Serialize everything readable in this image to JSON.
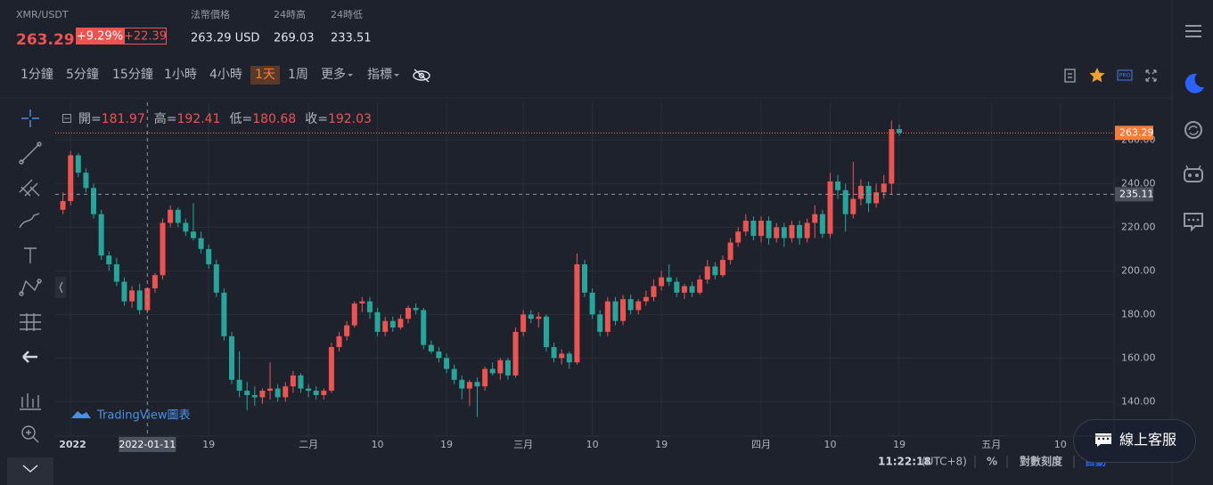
{
  "header": {
    "pair": "XMR/USDT",
    "last_price": "263.29",
    "change_pct": "+9.29%",
    "change_abs": "+22.39",
    "fiat_label": "法幣價格",
    "fiat_value": "263.29 USD",
    "high_label": "24時高",
    "high_value": "269.03",
    "low_label": "24時低",
    "low_value": "233.51"
  },
  "timeframes": [
    "1分鐘",
    "5分鐘",
    "15分鐘",
    "1小時",
    "4小時",
    "1天",
    "1周"
  ],
  "active_timeframe": 5,
  "menus": [
    "更多",
    "指標"
  ],
  "legend": {
    "open_label": "開=",
    "open": "181.97",
    "high_label": "高=",
    "high": "192.41",
    "low_label": "低=",
    "low": "180.68",
    "close_label": "收=",
    "close": "192.03"
  },
  "watermark": "TradingView圖表",
  "chart": {
    "type": "candlestick",
    "up_color": "#ef5350",
    "down_color": "#26a69a",
    "xlim": [
      "2021-12-30",
      "2022-05-17"
    ],
    "ylim": [
      124.2,
      277.3
    ],
    "yticks": [
      {
        "value": 140,
        "label": "140.00"
      },
      {
        "value": 160,
        "label": "160.00"
      },
      {
        "value": 180,
        "label": "180.00"
      },
      {
        "value": 200,
        "label": "200.00"
      },
      {
        "value": 220,
        "label": "220.00"
      },
      {
        "value": 240,
        "label": "240.00"
      },
      {
        "value": 260,
        "label": "260.00"
      }
    ],
    "xticks": [
      {
        "value": "2022-01-01",
        "label": "2022"
      },
      {
        "value": "2022-01-19",
        "label": "19"
      },
      {
        "value": "2022-02-01",
        "label": "二月"
      },
      {
        "value": "2022-02-10",
        "label": "10"
      },
      {
        "value": "2022-02-19",
        "label": "19"
      },
      {
        "value": "2022-03-01",
        "label": "三月"
      },
      {
        "value": "2022-03-10",
        "label": "10"
      },
      {
        "value": "2022-03-19",
        "label": "19"
      },
      {
        "value": "2022-04-01",
        "label": "四月"
      },
      {
        "value": "2022-04-10",
        "label": "10"
      },
      {
        "value": "2022-04-19",
        "label": "19"
      },
      {
        "value": "2022-05-01",
        "label": "五月"
      },
      {
        "value": "2022-05-10",
        "label": "10"
      }
    ],
    "crosshair_date": "2022-01-11",
    "crosshair_price": {
      "value": 235.11,
      "label": "235.11"
    },
    "last_price_line": {
      "value": 263.29,
      "label": "263.29"
    },
    "candles": [
      [
        "2021-12-31",
        228,
        236,
        226,
        232
      ],
      [
        "2022-01-01",
        232,
        255,
        230,
        253
      ],
      [
        "2022-01-02",
        253,
        254,
        243,
        245
      ],
      [
        "2022-01-03",
        245,
        247,
        236,
        238
      ],
      [
        "2022-01-04",
        238,
        240,
        224,
        226
      ],
      [
        "2022-01-05",
        226,
        228,
        205,
        207
      ],
      [
        "2022-01-06",
        207,
        209,
        200,
        203
      ],
      [
        "2022-01-07",
        203,
        206,
        193,
        195
      ],
      [
        "2022-01-08",
        195,
        197,
        184,
        186
      ],
      [
        "2022-01-09",
        186,
        193,
        183,
        191
      ],
      [
        "2022-01-10",
        191,
        194,
        180,
        182
      ],
      [
        "2022-01-11",
        181.97,
        192.41,
        180.68,
        192.03
      ],
      [
        "2022-01-12",
        192,
        199,
        190,
        198
      ],
      [
        "2022-01-13",
        198,
        224,
        196,
        222
      ],
      [
        "2022-01-14",
        222,
        230,
        220,
        228
      ],
      [
        "2022-01-15",
        228,
        229,
        220,
        222
      ],
      [
        "2022-01-16",
        222,
        224,
        216,
        218
      ],
      [
        "2022-01-17",
        218,
        231,
        214,
        215
      ],
      [
        "2022-01-18",
        215,
        218,
        208,
        210
      ],
      [
        "2022-01-19",
        210,
        212,
        201,
        203
      ],
      [
        "2022-01-20",
        203,
        205,
        188,
        190
      ],
      [
        "2022-01-21",
        190,
        192,
        168,
        170
      ],
      [
        "2022-01-22",
        170,
        172,
        148,
        150
      ],
      [
        "2022-01-23",
        150,
        163,
        142,
        145
      ],
      [
        "2022-01-24",
        145,
        149,
        136,
        143
      ],
      [
        "2022-01-25",
        143,
        147,
        138,
        142
      ],
      [
        "2022-01-26",
        142,
        146,
        139,
        145
      ],
      [
        "2022-01-27",
        145,
        158,
        141,
        146
      ],
      [
        "2022-01-28",
        146,
        148,
        140,
        142
      ],
      [
        "2022-01-29",
        142,
        149,
        140,
        147
      ],
      [
        "2022-01-30",
        147,
        154,
        144,
        152
      ],
      [
        "2022-01-31",
        152,
        153,
        144,
        146
      ],
      [
        "2022-02-01",
        146,
        148,
        142,
        145
      ],
      [
        "2022-02-02",
        145,
        147,
        141,
        143
      ],
      [
        "2022-02-03",
        143,
        146,
        141,
        145
      ],
      [
        "2022-02-04",
        145,
        167,
        144,
        165
      ],
      [
        "2022-02-05",
        165,
        172,
        163,
        170
      ],
      [
        "2022-02-06",
        170,
        177,
        168,
        175
      ],
      [
        "2022-02-07",
        175,
        186,
        174,
        185
      ],
      [
        "2022-02-08",
        185,
        188,
        181,
        186
      ],
      [
        "2022-02-09",
        186,
        188,
        178,
        181
      ],
      [
        "2022-02-10",
        181,
        183,
        170,
        172
      ],
      [
        "2022-02-11",
        172,
        179,
        170,
        177
      ],
      [
        "2022-02-12",
        177,
        179,
        172,
        174
      ],
      [
        "2022-02-13",
        174,
        180,
        173,
        178
      ],
      [
        "2022-02-14",
        178,
        184,
        176,
        183
      ],
      [
        "2022-02-15",
        183,
        185,
        180,
        182
      ],
      [
        "2022-02-16",
        182,
        183,
        164,
        166
      ],
      [
        "2022-02-17",
        166,
        168,
        162,
        163
      ],
      [
        "2022-02-18",
        163,
        165,
        158,
        160
      ],
      [
        "2022-02-19",
        160,
        162,
        153,
        155
      ],
      [
        "2022-02-20",
        155,
        157,
        148,
        150
      ],
      [
        "2022-02-21",
        150,
        152,
        141,
        146
      ],
      [
        "2022-02-22",
        146,
        150,
        138,
        149
      ],
      [
        "2022-02-23",
        149,
        151,
        133,
        147
      ],
      [
        "2022-02-24",
        147,
        156,
        145,
        155
      ],
      [
        "2022-02-25",
        155,
        158,
        152,
        153
      ],
      [
        "2022-02-26",
        153,
        160,
        150,
        159
      ],
      [
        "2022-02-27",
        159,
        160,
        150,
        152
      ],
      [
        "2022-02-28",
        152,
        174,
        151,
        172
      ],
      [
        "2022-03-01",
        172,
        182,
        170,
        180
      ],
      [
        "2022-03-02",
        180,
        182,
        176,
        178
      ],
      [
        "2022-03-03",
        178,
        181,
        174,
        179
      ],
      [
        "2022-03-04",
        179,
        180,
        163,
        165
      ],
      [
        "2022-03-05",
        165,
        167,
        158,
        160
      ],
      [
        "2022-03-06",
        160,
        164,
        157,
        162
      ],
      [
        "2022-03-07",
        162,
        163,
        155,
        158
      ],
      [
        "2022-03-08",
        158,
        208,
        157,
        203
      ],
      [
        "2022-03-09",
        203,
        205,
        188,
        190
      ],
      [
        "2022-03-10",
        190,
        192,
        178,
        180
      ],
      [
        "2022-03-11",
        180,
        182,
        170,
        172
      ],
      [
        "2022-03-12",
        172,
        188,
        170,
        186
      ],
      [
        "2022-03-13",
        186,
        188,
        175,
        177
      ],
      [
        "2022-03-14",
        177,
        189,
        175,
        187
      ],
      [
        "2022-03-15",
        187,
        189,
        180,
        182
      ],
      [
        "2022-03-16",
        182,
        187,
        180,
        186
      ],
      [
        "2022-03-17",
        186,
        191,
        184,
        188
      ],
      [
        "2022-03-18",
        188,
        196,
        186,
        193
      ],
      [
        "2022-03-19",
        193,
        200,
        191,
        197
      ],
      [
        "2022-03-20",
        197,
        203,
        193,
        195
      ],
      [
        "2022-03-21",
        195,
        197,
        188,
        190
      ],
      [
        "2022-03-22",
        190,
        194,
        187,
        193
      ],
      [
        "2022-03-23",
        193,
        195,
        188,
        190
      ],
      [
        "2022-03-24",
        190,
        198,
        189,
        196
      ],
      [
        "2022-03-25",
        196,
        205,
        194,
        202
      ],
      [
        "2022-03-26",
        202,
        204,
        196,
        198
      ],
      [
        "2022-03-27",
        198,
        207,
        197,
        205
      ],
      [
        "2022-03-28",
        205,
        215,
        203,
        213
      ],
      [
        "2022-03-29",
        213,
        220,
        211,
        218
      ],
      [
        "2022-03-30",
        218,
        226,
        216,
        223
      ],
      [
        "2022-03-31",
        223,
        225,
        214,
        216
      ],
      [
        "2022-04-01",
        216,
        225,
        213,
        223
      ],
      [
        "2022-04-02",
        223,
        225,
        212,
        215
      ],
      [
        "2022-04-03",
        215,
        222,
        213,
        220
      ],
      [
        "2022-04-04",
        220,
        222,
        211,
        215
      ],
      [
        "2022-04-05",
        215,
        223,
        213,
        221
      ],
      [
        "2022-04-06",
        221,
        223,
        212,
        215
      ],
      [
        "2022-04-07",
        215,
        224,
        213,
        222
      ],
      [
        "2022-04-08",
        222,
        230,
        215,
        226
      ],
      [
        "2022-04-09",
        226,
        228,
        215,
        217
      ],
      [
        "2022-04-10",
        217,
        245,
        215,
        241
      ],
      [
        "2022-04-11",
        241,
        244,
        233,
        237
      ],
      [
        "2022-04-12",
        237,
        240,
        218,
        226
      ],
      [
        "2022-04-13",
        226,
        250,
        224,
        233
      ],
      [
        "2022-04-14",
        233,
        242,
        230,
        239
      ],
      [
        "2022-04-15",
        239,
        241,
        227,
        231
      ],
      [
        "2022-04-16",
        231,
        240,
        229,
        236
      ],
      [
        "2022-04-17",
        236,
        244,
        233,
        240
      ],
      [
        "2022-04-18",
        240,
        269.03,
        235,
        265
      ],
      [
        "2022-04-19",
        265,
        267,
        262,
        263.29
      ]
    ]
  },
  "footer": {
    "time": "11:22:18",
    "timezone": "(UTC+8)",
    "percent": "%",
    "log_scale": "對數刻度",
    "auto": "自動"
  },
  "chat_button": "線上客服"
}
